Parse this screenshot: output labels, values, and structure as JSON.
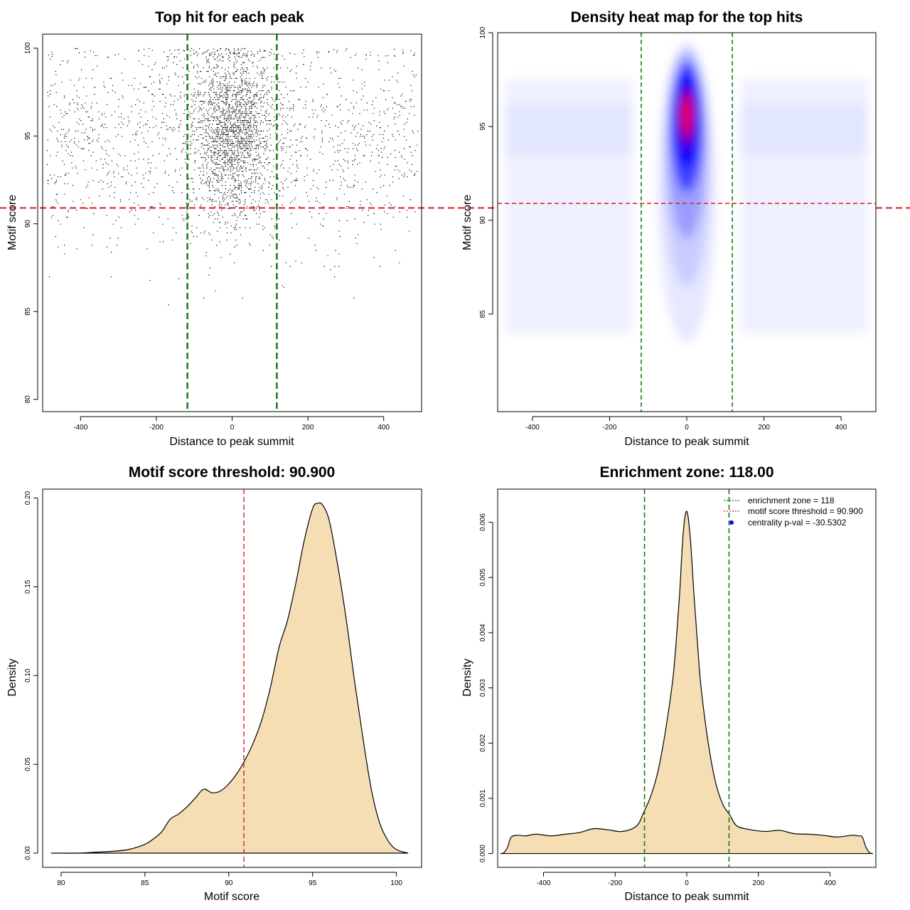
{
  "chart_data": [
    {
      "type": "scatter",
      "title": "Top hit for each peak",
      "xlabel": "Distance to peak summit",
      "ylabel": "Motif score",
      "xlim": [
        -500,
        500
      ],
      "ylim": [
        79.3,
        100.8
      ],
      "xticks": [
        "-400",
        "-200",
        "0",
        "200",
        "400"
      ],
      "yticks": [
        "80",
        "85",
        "90",
        "95",
        "100"
      ],
      "grid": false,
      "reference_lines": {
        "threshold_y": 90.9,
        "zone_x": [
          -118,
          118
        ]
      },
      "colors": {
        "points": "#000000",
        "threshold": "#e31a1c",
        "zone": "#1a7a1a"
      },
      "point_distribution": {
        "center_fraction": 0.55,
        "center_sd": 55,
        "score_mean": 94.8,
        "score_sd": 3.0
      }
    },
    {
      "type": "heatmap",
      "title": "Density heat map for the top hits",
      "xlabel": "Distance to peak summit",
      "ylabel": "Motif score",
      "xlim": [
        -490,
        490
      ],
      "ylim": [
        79.8,
        100
      ],
      "xticks": [
        "-400",
        "-200",
        "0",
        "200",
        "400"
      ],
      "yticks": [
        "85",
        "90",
        "95",
        "100"
      ],
      "grid": false,
      "reference_lines": {
        "threshold_y": 90.9,
        "zone_x": [
          -118,
          118
        ]
      },
      "density_peak": {
        "x": 0,
        "y": 95.6
      },
      "colors": {
        "low": "#ffffff",
        "mid": "#0000ff",
        "high": "#ff0000",
        "threshold": "#e31a1c",
        "zone": "#1a7a1a"
      }
    },
    {
      "type": "area",
      "title": "Motif score threshold: 90.900",
      "xlabel": "Motif score",
      "ylabel": "Density",
      "xlim": [
        78.9,
        101.5
      ],
      "ylim": [
        -0.008,
        0.205
      ],
      "xticks": [
        "80",
        "85",
        "90",
        "95",
        "100"
      ],
      "yticks": [
        "0.00",
        "0.05",
        "0.10",
        "0.15",
        "0.20"
      ],
      "x": [
        79.4,
        81,
        82,
        83,
        84,
        85,
        85.5,
        86,
        86.5,
        87,
        87.5,
        88,
        88.5,
        89,
        89.5,
        90,
        90.5,
        91,
        91.5,
        92,
        92.5,
        93,
        93.5,
        94,
        94.5,
        95,
        95.3,
        95.6,
        96,
        96.5,
        97,
        97.5,
        98,
        98.5,
        99,
        99.5,
        100,
        100.7
      ],
      "y": [
        0,
        0,
        0.0005,
        0.001,
        0.002,
        0.005,
        0.008,
        0.012,
        0.019,
        0.022,
        0.026,
        0.031,
        0.036,
        0.034,
        0.035,
        0.039,
        0.045,
        0.053,
        0.063,
        0.076,
        0.094,
        0.116,
        0.131,
        0.152,
        0.176,
        0.194,
        0.197,
        0.196,
        0.187,
        0.162,
        0.132,
        0.097,
        0.065,
        0.036,
        0.017,
        0.007,
        0.002,
        0
      ],
      "reference_lines": {
        "threshold_x": 90.9
      },
      "colors": {
        "fill": "#f5deb3",
        "line": "#000000",
        "threshold": "#e31a1c"
      }
    },
    {
      "type": "area",
      "title": "Enrichment zone: 118.00",
      "xlabel": "Distance to peak summit",
      "ylabel": "Density",
      "xlim": [
        -528,
        528
      ],
      "ylim": [
        -0.00025,
        0.0066
      ],
      "xticks": [
        "-400",
        "-200",
        "0",
        "200",
        "400"
      ],
      "yticks": [
        "0.000",
        "0.001",
        "0.002",
        "0.003",
        "0.004",
        "0.005",
        "0.006"
      ],
      "x": [
        -520,
        -510,
        -500,
        -490,
        -470,
        -450,
        -420,
        -380,
        -340,
        -300,
        -260,
        -220,
        -180,
        -140,
        -120,
        -100,
        -80,
        -60,
        -40,
        -30,
        -20,
        -10,
        0,
        10,
        20,
        30,
        40,
        60,
        80,
        100,
        120,
        140,
        180,
        220,
        260,
        300,
        340,
        380,
        420,
        460,
        480,
        490,
        500,
        510,
        520
      ],
      "y": [
        0,
        2e-05,
        0.00012,
        0.0003,
        0.00033,
        0.00032,
        0.00035,
        0.00032,
        0.00035,
        0.00038,
        0.00045,
        0.00043,
        0.0004,
        0.0005,
        0.00075,
        0.00105,
        0.0015,
        0.0022,
        0.0031,
        0.0038,
        0.0047,
        0.0058,
        0.0062,
        0.0057,
        0.0047,
        0.0038,
        0.003,
        0.002,
        0.0013,
        0.0009,
        0.0007,
        0.0005,
        0.00043,
        0.0004,
        0.00042,
        0.00036,
        0.00035,
        0.00033,
        0.0003,
        0.00033,
        0.00032,
        0.0003,
        0.00012,
        2e-05,
        0
      ],
      "reference_lines": {
        "zone_x": [
          -118,
          118
        ]
      },
      "legend": {
        "position": "top-right",
        "entries": [
          {
            "label": "enrichment zone = 118",
            "style": "dotted-line",
            "color": "#1a7a1a"
          },
          {
            "label": "motif score threshold = 90.900",
            "style": "dotted-line",
            "color": "#e31a1c"
          },
          {
            "label": "centrality p-val = -30.5302",
            "style": "dot",
            "color": "#0000ff"
          }
        ]
      },
      "colors": {
        "fill": "#f5deb3",
        "line": "#000000",
        "zone": "#1a7a1a"
      }
    }
  ]
}
